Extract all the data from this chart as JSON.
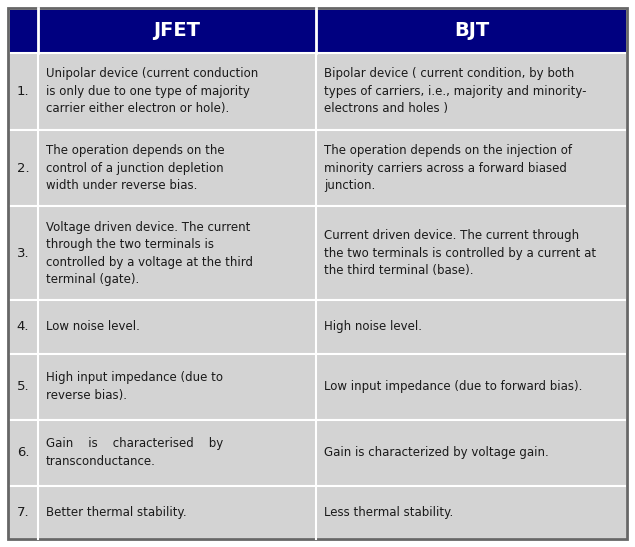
{
  "header_bg": "#000080",
  "header_text_color": "#ffffff",
  "row_bg": "#d3d3d3",
  "border_color": "#ffffff",
  "text_color": "#1a1a1a",
  "col_headers": [
    "JFET",
    "BJT"
  ],
  "figsize": [
    6.35,
    5.47
  ],
  "dpi": 100,
  "header_color": "#00008B",
  "rows": [
    {
      "num": "1.",
      "jfet": "Unipolar device (current conduction\nis only due to one type of majority\ncarrier either electron or hole).",
      "bjt": "Bipolar device ( current condition, by both\ntypes of carriers, i.e., majority and minority-\nelectrons and holes )"
    },
    {
      "num": "2.",
      "jfet": "The operation depends on the\ncontrol of a junction depletion\nwidth under reverse bias.",
      "bjt": "The operation depends on the injection of\nminority carriers across a forward biased\njunction."
    },
    {
      "num": "3.",
      "jfet": "Voltage driven device. The current\nthrough the two terminals is\ncontrolled by a voltage at the third\nterminal (gate).",
      "bjt": "Current driven device. The current through\nthe two terminals is controlled by a current at\nthe third terminal (base)."
    },
    {
      "num": "4.",
      "jfet": "Low noise level.",
      "bjt": "High noise level."
    },
    {
      "num": "5.",
      "jfet": "High input impedance (due to\nreverse bias).",
      "bjt": "Low input impedance (due to forward bias)."
    },
    {
      "num": "6.",
      "jfet": "Gain    is    characterised    by\ntransconductance.",
      "bjt": "Gain is characterized by voltage gain."
    },
    {
      "num": "7.",
      "jfet": "Better thermal stability.",
      "bjt": "Less thermal stability."
    }
  ]
}
